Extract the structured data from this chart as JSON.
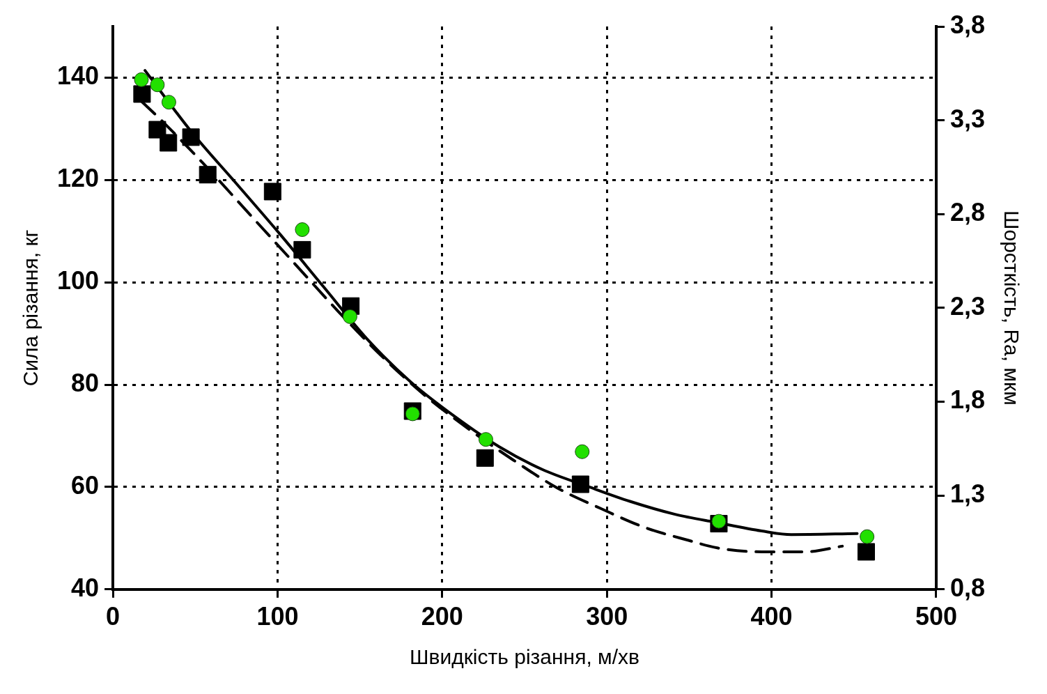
{
  "chart_data": {
    "type": "scatter",
    "xlabel": "Швидкість різання, м/хв",
    "ylabel": "Сила різання, кг",
    "y2label": "Шорсткість, Ra, мкм",
    "xlim": [
      0,
      500
    ],
    "xticks": [
      0,
      100,
      200,
      300,
      400,
      500
    ],
    "ylim": [
      40,
      150
    ],
    "yticks": [
      40,
      60,
      80,
      100,
      120,
      140
    ],
    "y2lim": [
      0.8,
      3.8
    ],
    "y2ticks": [
      {
        "value": 0.8,
        "label": "0,8"
      },
      {
        "value": 1.3,
        "label": "1,3"
      },
      {
        "value": 1.8,
        "label": "1,8"
      },
      {
        "value": 2.3,
        "label": "2,3"
      },
      {
        "value": 2.8,
        "label": "2,8"
      },
      {
        "value": 3.3,
        "label": "3,3"
      },
      {
        "value": 3.8,
        "label": "3,8"
      }
    ],
    "grid": true,
    "legend": false,
    "series": [
      {
        "type": "line",
        "color": "#000000",
        "marker": "none",
        "line_style": "solid",
        "x": [
          19.5,
          48,
          75,
          101.5,
          128,
          154.7,
          181,
          208,
          234.5,
          261,
          287.7,
          314,
          341,
          367.5,
          394,
          412,
          452
        ],
        "values": [
          141.4,
          129.3,
          119.3,
          109.4,
          99.1,
          88.8,
          80.5,
          73.7,
          67.9,
          63.4,
          60.2,
          57.2,
          54.7,
          53,
          51.4,
          50.7,
          50.9
        ]
      },
      {
        "type": "line",
        "axis": "y2",
        "color": "#000000",
        "marker": "none",
        "line_style": "dashed",
        "x": [
          17.5,
          30.6,
          57,
          84,
          110,
          137,
          163.6,
          190,
          216.8,
          243,
          270,
          296.5,
          323,
          350,
          367.5,
          394,
          420.7,
          443
        ],
        "values": [
          3.4,
          3.29,
          3.05,
          2.79,
          2.54,
          2.28,
          2.04,
          1.83,
          1.65,
          1.49,
          1.34,
          1.23,
          1.13,
          1.06,
          1.02,
          1.0,
          1.0,
          1.03
        ]
      },
      {
        "type": "scatter",
        "axis": "y2",
        "color": "#000000",
        "marker": "square",
        "x": [
          17.7,
          27,
          33.7,
          47.4,
          57.6,
          97,
          115,
          144.5,
          182,
          226,
          284,
          368,
          457.5
        ],
        "values": [
          3.44,
          3.25,
          3.18,
          3.21,
          3.01,
          2.92,
          2.61,
          2.31,
          1.75,
          1.5,
          1.36,
          1.15,
          1.0
        ]
      },
      {
        "type": "scatter",
        "color": "#22e000",
        "marker": "circle",
        "x": [
          17.3,
          27,
          34,
          115,
          144,
          182,
          226.5,
          285,
          368,
          458
        ],
        "values": [
          139.6,
          138.6,
          135.2,
          110.3,
          93.3,
          74.3,
          69.3,
          66.9,
          53.3,
          50.3
        ]
      }
    ]
  }
}
